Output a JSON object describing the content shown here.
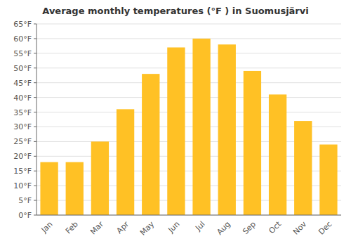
{
  "chart_data": {
    "type": "bar",
    "title": "Average monthly temperatures (°F ) in Suomusjärvi",
    "categories": [
      "Jan",
      "Feb",
      "Mar",
      "Apr",
      "May",
      "Jun",
      "Jul",
      "Aug",
      "Sep",
      "Oct",
      "Nov",
      "Dec"
    ],
    "values": [
      18,
      18,
      25,
      36,
      48,
      57,
      60,
      58,
      49,
      41,
      32,
      24
    ],
    "color": "#FFC125",
    "ylim": [
      0,
      65
    ],
    "yticks": [
      {
        "value": 0,
        "label": "0°F"
      },
      {
        "value": 5,
        "label": "5°F"
      },
      {
        "value": 10,
        "label": "10°F"
      },
      {
        "value": 15,
        "label": "15°F"
      },
      {
        "value": 20,
        "label": "20°F"
      },
      {
        "value": 25,
        "label": "25°F"
      },
      {
        "value": 30,
        "label": "30°F"
      },
      {
        "value": 35,
        "label": "35°F"
      },
      {
        "value": 40,
        "label": "40°F"
      },
      {
        "value": 45,
        "label": "45°F"
      },
      {
        "value": 50,
        "label": "50°F"
      },
      {
        "value": 55,
        "label": "55°F"
      },
      {
        "value": 60,
        "label": "60°F"
      },
      {
        "value": 65,
        "label": "65°F"
      }
    ],
    "grid": true
  }
}
